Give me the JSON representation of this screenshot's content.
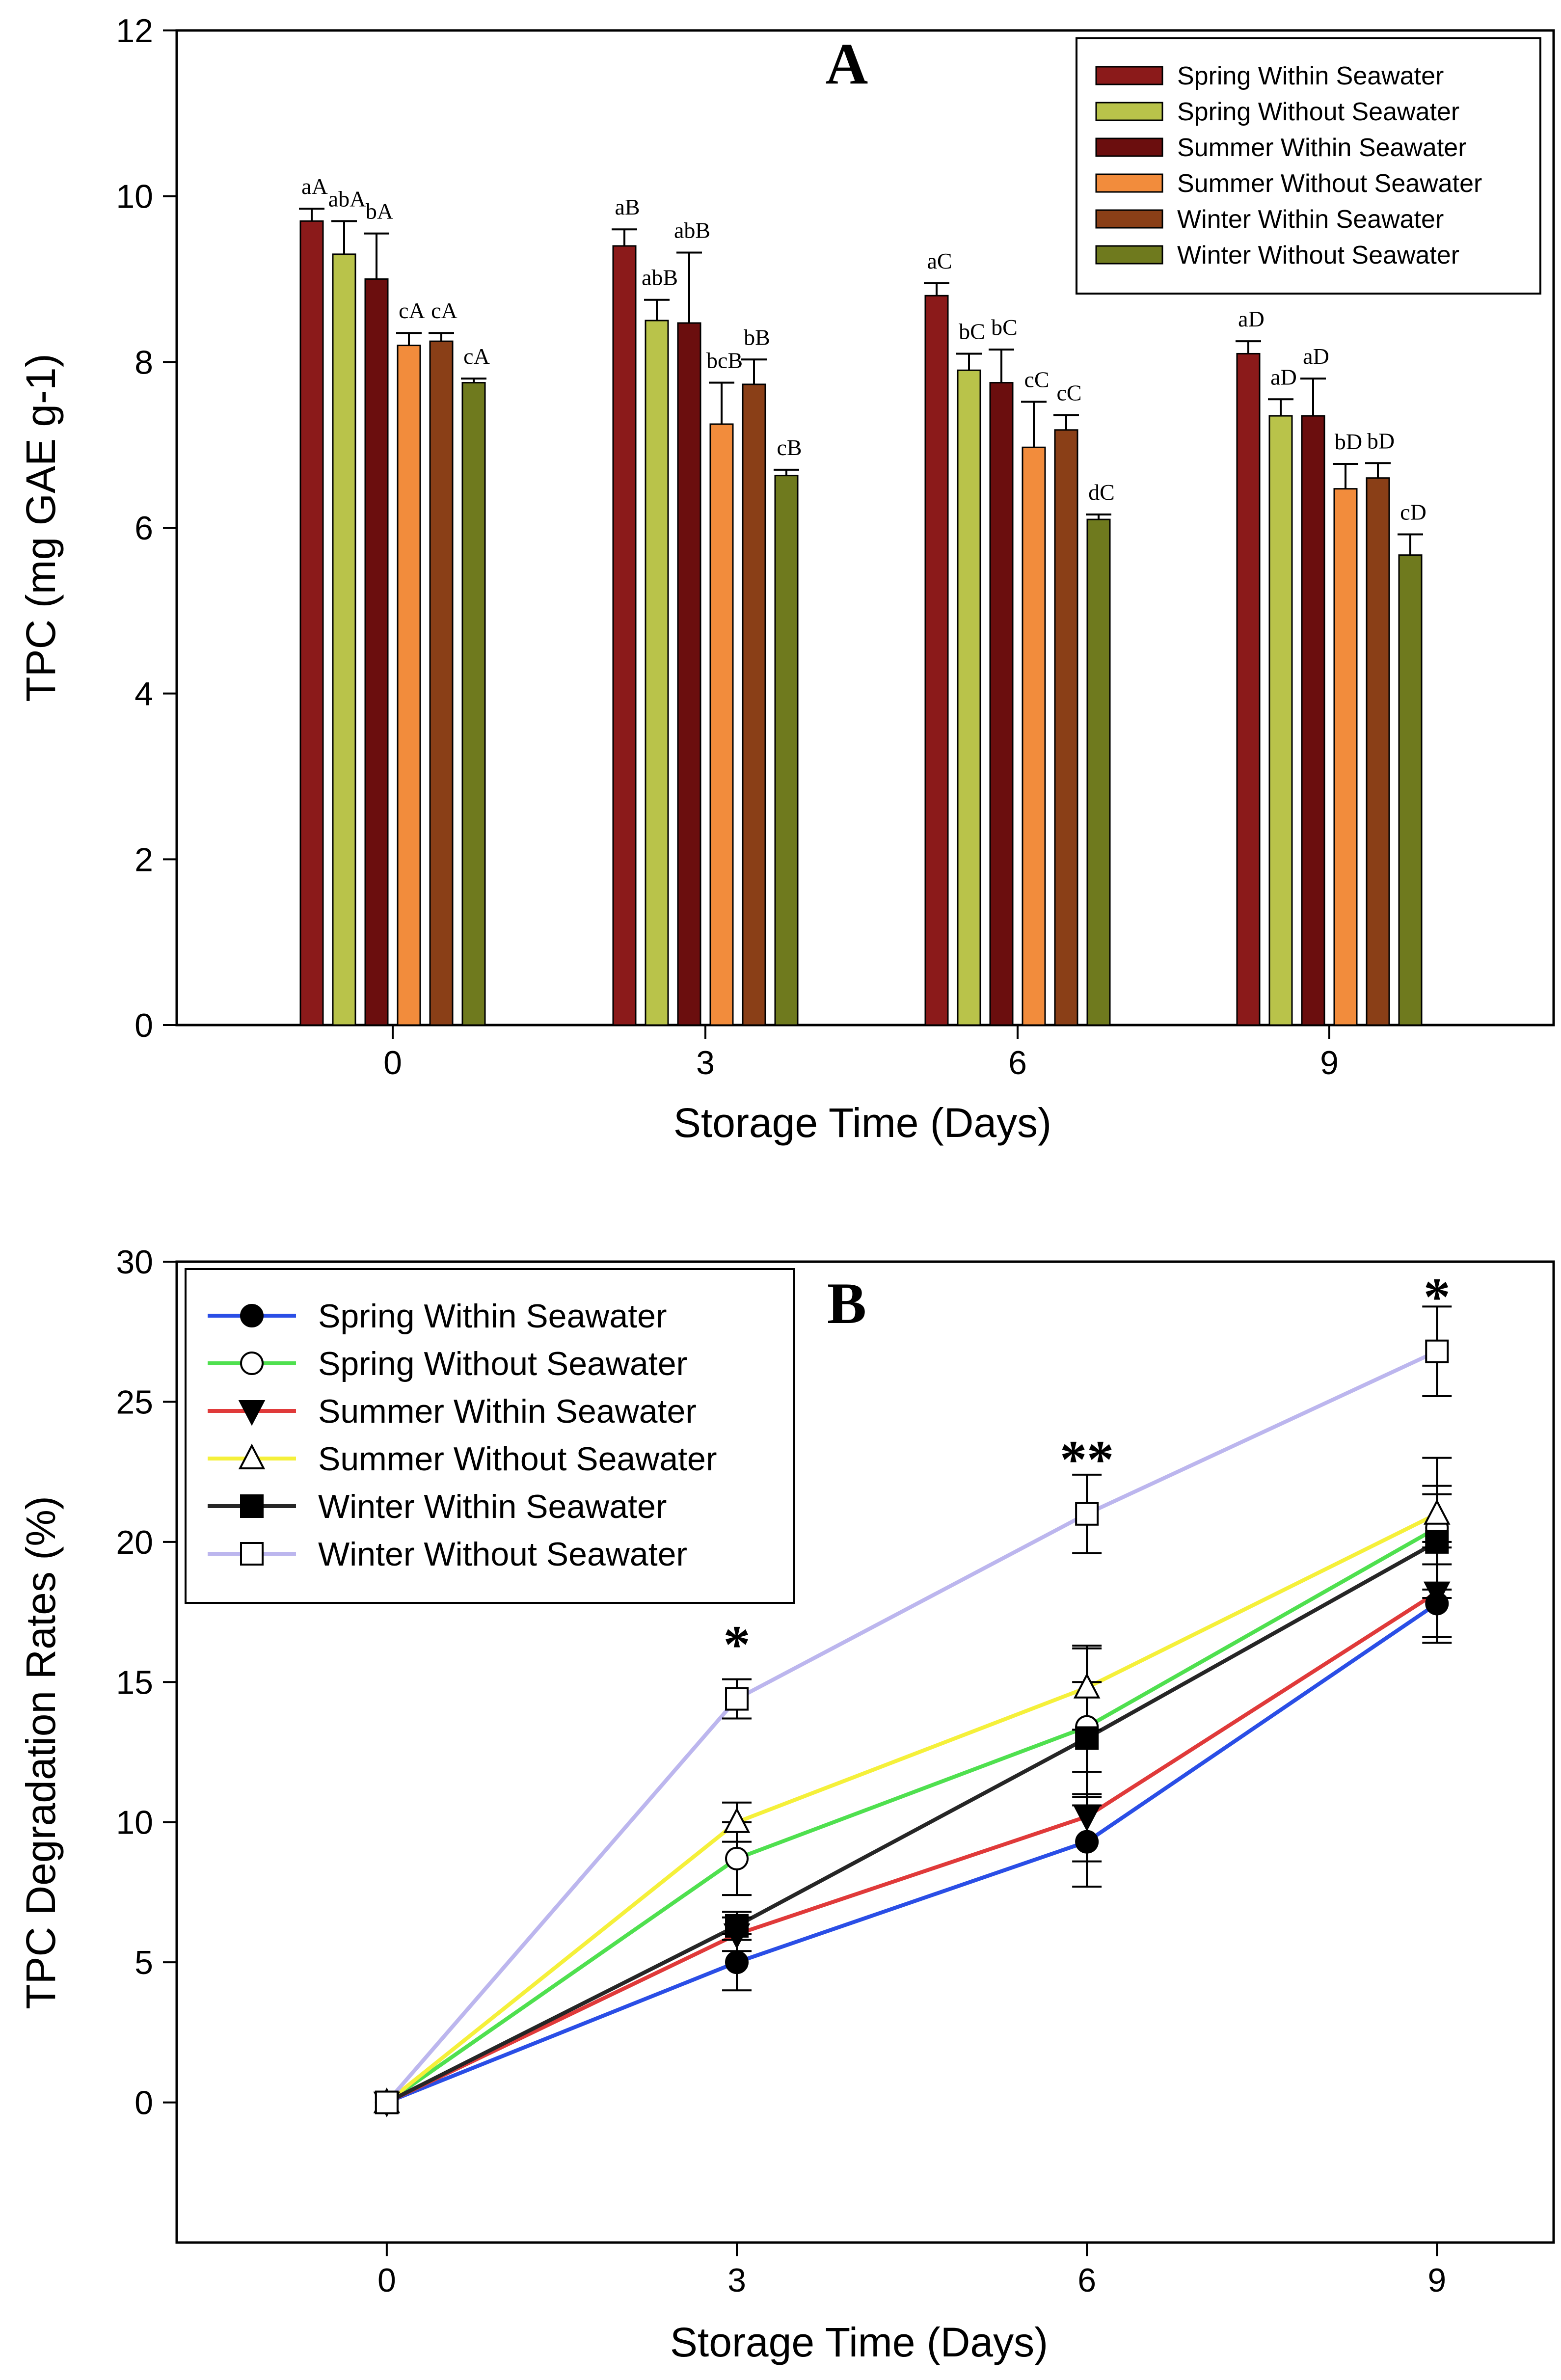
{
  "chart_data": [
    {
      "type": "bar",
      "panel": "A",
      "title": "A",
      "xlabel": "Storage Time (Days)",
      "ylabel": "TPC (mg GAE g-1)",
      "ylim": [
        0,
        12
      ],
      "yticks": [
        "0",
        "2",
        "4",
        "6",
        "8",
        "10",
        "12"
      ],
      "categories": [
        "0",
        "3",
        "6",
        "9"
      ],
      "legend_position": "top-right",
      "series": [
        {
          "name": "Spring Within Seawater",
          "color": "#8b1a1a",
          "values": [
            9.7,
            9.4,
            8.8,
            8.1
          ],
          "errors": [
            0.15,
            0.2,
            0.15,
            0.15
          ],
          "labels": [
            "aA",
            "aB",
            "aC",
            "aD"
          ]
        },
        {
          "name": "Spring Without Seawater",
          "color": "#b9c34a",
          "values": [
            9.3,
            8.5,
            7.9,
            7.35
          ],
          "errors": [
            0.4,
            0.25,
            0.2,
            0.2
          ],
          "labels": [
            "abA",
            "abB",
            "bC",
            "aD"
          ]
        },
        {
          "name": "Summer Within Seawater",
          "color": "#6b0e0e",
          "values": [
            9.0,
            8.47,
            7.75,
            7.35
          ],
          "errors": [
            0.55,
            0.85,
            0.4,
            0.45
          ],
          "labels": [
            "bA",
            "abB",
            "bC",
            "aD"
          ]
        },
        {
          "name": "Summer Without Seawater",
          "color": "#f28c3c",
          "values": [
            8.2,
            7.25,
            6.97,
            6.47
          ],
          "errors": [
            0.15,
            0.5,
            0.55,
            0.3
          ],
          "labels": [
            "cA",
            "bcB",
            "cC",
            "bD"
          ]
        },
        {
          "name": "Winter Within Seawater",
          "color": "#8a3f17",
          "values": [
            8.25,
            7.73,
            7.18,
            6.6
          ],
          "errors": [
            0.1,
            0.3,
            0.18,
            0.18
          ],
          "labels": [
            "cA",
            "bB",
            "cC",
            "bD"
          ]
        },
        {
          "name": "Winter Without Seawater",
          "color": "#6f7a1e",
          "values": [
            7.75,
            6.63,
            6.1,
            5.67
          ],
          "errors": [
            0.05,
            0.07,
            0.06,
            0.25
          ],
          "labels": [
            "cA",
            "cB",
            "dC",
            "cD"
          ]
        }
      ]
    },
    {
      "type": "line",
      "panel": "B",
      "title": "B",
      "xlabel": "Storage Time (Days)",
      "ylabel": "TPC Degradation Rates (%)",
      "ylim": [
        -5,
        30
      ],
      "yticks": [
        "0",
        "5",
        "10",
        "15",
        "20",
        "25",
        "30"
      ],
      "x": [
        0,
        3,
        6,
        9
      ],
      "xticks": [
        "0",
        "3",
        "6",
        "9"
      ],
      "xlim": [
        -1.8,
        10.0
      ],
      "legend_position": "top-left",
      "annotations": [
        {
          "x": 3,
          "text": "*",
          "y": 16.4
        },
        {
          "x": 6,
          "text": "**",
          "y": 23.0
        },
        {
          "x": 9,
          "text": "*",
          "y": 28.8
        }
      ],
      "series": [
        {
          "name": "Spring Within Seawater",
          "line_color": "#2a4ee6",
          "marker": "filled-circle",
          "values": [
            0,
            5.0,
            9.3,
            17.8
          ],
          "errors": [
            0,
            1.0,
            1.6,
            1.4
          ]
        },
        {
          "name": "Spring Without Seawater",
          "line_color": "#4fe04f",
          "marker": "open-circle",
          "values": [
            0,
            8.7,
            13.4,
            20.5
          ],
          "errors": [
            0,
            1.3,
            2.8,
            2.5
          ]
        },
        {
          "name": "Summer Within Seawater",
          "line_color": "#e03a3a",
          "marker": "filled-triangle-down",
          "values": [
            0,
            6.0,
            10.2,
            18.2
          ],
          "errors": [
            0,
            0.6,
            1.6,
            1.6
          ]
        },
        {
          "name": "Summer Without Seawater",
          "line_color": "#f5f03a",
          "marker": "open-triangle-up",
          "values": [
            0,
            10.0,
            14.8,
            21.0
          ],
          "errors": [
            0,
            0.7,
            1.5,
            1.0
          ]
        },
        {
          "name": "Winter Within Seawater",
          "line_color": "#262626",
          "marker": "filled-square",
          "values": [
            0,
            6.3,
            13.0,
            20.0
          ],
          "errors": [
            0,
            0.5,
            2.0,
            1.7
          ]
        },
        {
          "name": "Winter Without Seawater",
          "line_color": "#bcb6ee",
          "marker": "open-square",
          "values": [
            0,
            14.4,
            21.0,
            26.8
          ],
          "errors": [
            0,
            0.7,
            1.4,
            1.6
          ]
        }
      ]
    }
  ]
}
